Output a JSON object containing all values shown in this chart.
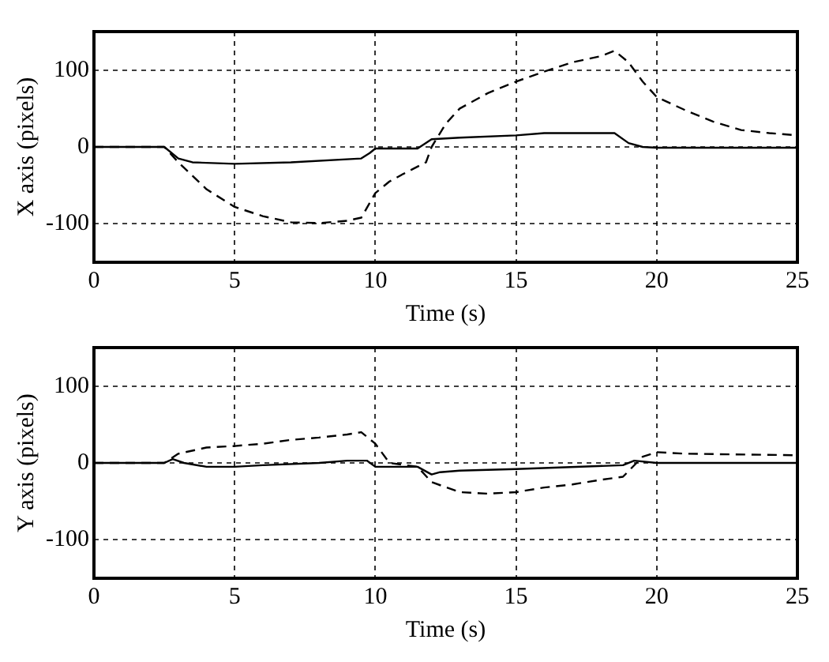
{
  "chart_data": [
    {
      "type": "line",
      "xlabel": "Time (s)",
      "ylabel": "X axis (pixels)",
      "xlim": [
        0,
        25
      ],
      "xticks": [
        0,
        5,
        10,
        15,
        20,
        25
      ],
      "ylim": [
        -150,
        150
      ],
      "yticks": [
        -100,
        0,
        100
      ],
      "grid": true,
      "series": [
        {
          "color": "#000000",
          "line_style": "solid",
          "x": [
            0,
            2.5,
            3,
            3.5,
            5,
            7,
            9.5,
            9.8,
            10,
            11.5,
            12,
            13,
            15,
            16,
            18.5,
            19,
            19.5,
            20,
            25
          ],
          "values": [
            0,
            0,
            -15,
            -20,
            -22,
            -20,
            -15,
            -8,
            -2,
            -2,
            10,
            12,
            15,
            18,
            18,
            5,
            0,
            -1,
            -1
          ]
        },
        {
          "color": "#000000",
          "line_style": "dashed",
          "x": [
            0,
            2.5,
            3,
            4,
            5,
            6,
            7,
            8,
            9,
            9.5,
            10,
            10.5,
            11,
            11.8,
            12,
            12.5,
            13,
            14,
            15,
            16,
            17,
            18,
            18.5,
            19,
            19.5,
            20,
            21,
            22,
            23,
            24,
            25
          ],
          "values": [
            0,
            0,
            -20,
            -55,
            -78,
            -90,
            -98,
            -99,
            -96,
            -92,
            -60,
            -45,
            -35,
            -20,
            0,
            30,
            50,
            70,
            85,
            98,
            110,
            118,
            125,
            110,
            85,
            65,
            48,
            33,
            22,
            18,
            15
          ]
        }
      ]
    },
    {
      "type": "line",
      "xlabel": "Time (s)",
      "ylabel": "Y axis (pixels)",
      "xlim": [
        0,
        25
      ],
      "xticks": [
        0,
        5,
        10,
        15,
        20,
        25
      ],
      "ylim": [
        -150,
        150
      ],
      "yticks": [
        -100,
        0,
        100
      ],
      "grid": true,
      "series": [
        {
          "color": "#000000",
          "line_style": "solid",
          "x": [
            0,
            2.5,
            2.8,
            3.2,
            4,
            5,
            6,
            8,
            9,
            9.7,
            10,
            11.5,
            12,
            12.3,
            13,
            15,
            18.8,
            19.2,
            20,
            25
          ],
          "values": [
            0,
            0,
            5,
            0,
            -5,
            -5,
            -3,
            0,
            3,
            3,
            -5,
            -5,
            -15,
            -12,
            -10,
            -8,
            -3,
            3,
            0,
            0
          ]
        },
        {
          "color": "#000000",
          "line_style": "dashed",
          "x": [
            0,
            2.5,
            3,
            4,
            5,
            6,
            7,
            8,
            9,
            9.5,
            10,
            10.5,
            11.5,
            12,
            13,
            14,
            15,
            16,
            17,
            18,
            18.8,
            19.5,
            20,
            21,
            25
          ],
          "values": [
            0,
            0,
            12,
            20,
            22,
            25,
            30,
            33,
            37,
            40,
            25,
            0,
            -5,
            -25,
            -38,
            -40,
            -38,
            -32,
            -28,
            -22,
            -18,
            8,
            14,
            12,
            10
          ]
        }
      ]
    }
  ]
}
